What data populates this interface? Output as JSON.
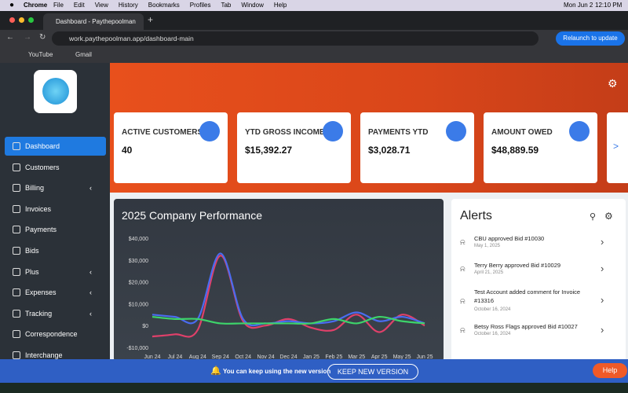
{
  "menubar": {
    "app": "Chrome",
    "menus": [
      "File",
      "Edit",
      "View",
      "History",
      "Bookmarks",
      "Profiles",
      "Tab",
      "Window",
      "Help"
    ],
    "date": "Mon Jun 2",
    "time": "12:10 PM"
  },
  "browser": {
    "tab_title": "Dashboard - Paythepoolman",
    "url": "work.paythepoolman.app/dashboard-main",
    "relaunch": "Relaunch to update",
    "bookmarks": [
      "YouTube",
      "Gmail"
    ]
  },
  "sidebar": {
    "items": [
      "Dashboard",
      "Customers",
      "Billing",
      "Invoices",
      "Payments",
      "Bids",
      "Plus",
      "Expenses",
      "Tracking",
      "Correspondence",
      "Interchange"
    ]
  },
  "cards": [
    {
      "label": "ACTIVE CUSTOMERS",
      "value": "40"
    },
    {
      "label": "YTD GROSS INCOME",
      "value": "$15,392.27"
    },
    {
      "label": "PAYMENTS YTD",
      "value": "$3,028.71"
    },
    {
      "label": "AMOUNT OWED",
      "value": "$48,889.59"
    }
  ],
  "chart_data": {
    "type": "line",
    "title": "2025 Company Performance",
    "categories": [
      "Jun 24",
      "Jul 24",
      "Aug 24",
      "Sep 24",
      "Oct 24",
      "Nov 24",
      "Dec 24",
      "Jan 25",
      "Feb 25",
      "Mar 25",
      "Apr 25",
      "May 25",
      "Jun 25"
    ],
    "series": [
      {
        "color": "#e0406a",
        "values": [
          -5000,
          -4000,
          -2000,
          32000,
          2000,
          0,
          3000,
          -1000,
          -2000,
          5000,
          -3000,
          5000,
          0
        ]
      },
      {
        "color": "#4a6cf0",
        "values": [
          5000,
          4000,
          3000,
          33000,
          3000,
          1000,
          2000,
          1000,
          2000,
          6000,
          2000,
          4000,
          1000
        ]
      },
      {
        "color": "#3dd46a",
        "values": [
          4000,
          3000,
          3000,
          1000,
          1000,
          1000,
          1000,
          1000,
          3000,
          1000,
          4000,
          2000,
          1000
        ]
      }
    ],
    "ylim": [
      -10000,
      40000
    ],
    "yticks": [
      {
        "value": -10000,
        "label": "-$10,000"
      },
      {
        "value": 0,
        "label": "$0"
      },
      {
        "value": 10000,
        "label": "$10,000"
      },
      {
        "value": 20000,
        "label": "$20,000"
      },
      {
        "value": 30000,
        "label": "$30,000"
      },
      {
        "value": 40000,
        "label": "$40,000"
      }
    ],
    "grid": false
  },
  "alerts": {
    "title": "Alerts",
    "items": [
      {
        "text": "CBU approved Bid #10030",
        "date": "May 1, 2025"
      },
      {
        "text": "Terry Berry approved Bid #10029",
        "date": "April 21, 2025"
      },
      {
        "text": "Test Account added comment for Invoice #13316",
        "date": "October 16, 2024"
      },
      {
        "text": "Betsy Ross Flags approved Bid #10027",
        "date": "October 16, 2024"
      }
    ]
  },
  "banner": {
    "text": "You can keep using the new version",
    "button": "KEEP NEW VERSION",
    "help": "Help"
  }
}
